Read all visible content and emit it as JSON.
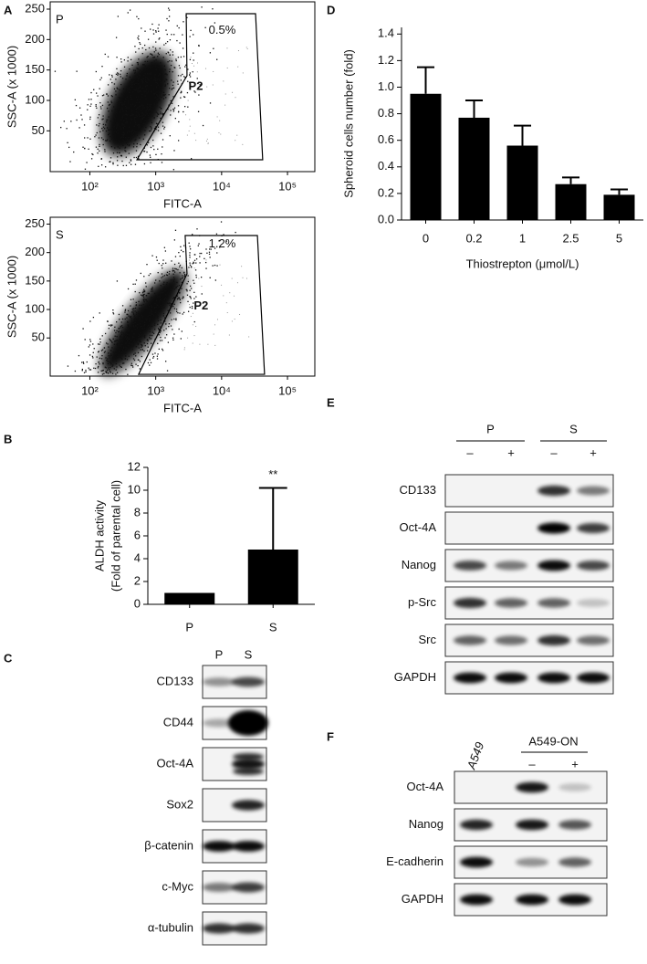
{
  "panel_labels": [
    "A",
    "B",
    "C",
    "D",
    "E",
    "F"
  ],
  "chart_data": [
    {
      "type": "flow",
      "panel_text": "P",
      "gate_percent": "0.5%",
      "gate_label": "P2",
      "x_label": "FITC-A",
      "y_label": "SSC-A (x 1000)",
      "xscale": "log",
      "xlim": [
        25,
        260000
      ],
      "xticks": [
        {
          "value": 100,
          "label": "10²"
        },
        {
          "value": 1000,
          "label": "10³"
        },
        {
          "value": 10000,
          "label": "10⁴"
        },
        {
          "value": 100000,
          "label": "10⁵"
        }
      ],
      "ylim": [
        -17,
        262
      ],
      "yticks": [
        50,
        100,
        150,
        200,
        250
      ]
    },
    {
      "type": "flow",
      "panel_text": "S",
      "gate_percent": "1.2%",
      "gate_label": "P2",
      "x_label": "FITC-A",
      "y_label": "SSC-A (x 1000)",
      "xscale": "log",
      "xlim": [
        25,
        260000
      ],
      "xticks": [
        {
          "value": 100,
          "label": "10²"
        },
        {
          "value": 1000,
          "label": "10³"
        },
        {
          "value": 10000,
          "label": "10⁴"
        },
        {
          "value": 100000,
          "label": "10⁵"
        }
      ],
      "ylim": [
        -17,
        262
      ],
      "yticks": [
        50,
        100,
        150,
        200,
        250
      ]
    },
    {
      "type": "bar",
      "y_label": [
        "ALDH activity",
        "(Fold of parental cell)"
      ],
      "categories": [
        "P",
        "S"
      ],
      "values": [
        1,
        4.8
      ],
      "errors": [
        null,
        5.4
      ],
      "annotations": [
        null,
        "**"
      ],
      "color": "#000000",
      "ylim": [
        0,
        12
      ],
      "yticks": [
        0,
        2,
        4,
        6,
        8,
        10,
        12
      ]
    },
    {
      "type": "bar",
      "x_label": "Thiostrepton (μmol/L)",
      "y_label": [
        "Spheroid cells number (fold)"
      ],
      "categories": [
        "0",
        "0.2",
        "1",
        "2.5",
        "5"
      ],
      "values": [
        0.95,
        0.77,
        0.56,
        0.27,
        0.19
      ],
      "errors": [
        0.2,
        0.13,
        0.15,
        0.05,
        0.04
      ],
      "color": "#000000",
      "ylim": [
        0,
        1.45
      ],
      "yticks": [
        {
          "value": 0,
          "label": "0.0"
        },
        0.2,
        0.4,
        0.6,
        0.8,
        {
          "value": 1,
          "label": "1.0"
        },
        1.2,
        1.4
      ]
    }
  ],
  "blots": [
    {
      "lanes": [
        "P",
        "S"
      ],
      "rows": [
        "CD133",
        "CD44",
        "Oct-4A",
        "Sox2",
        "β-catenin",
        "c-Myc",
        "α-tubulin"
      ]
    },
    {
      "groups": [
        "P",
        "S"
      ],
      "lanes": [
        "–",
        "+",
        "–",
        "+"
      ],
      "rows": [
        "CD133",
        "Oct-4A",
        "Nanog",
        "p-Src",
        "Src",
        "GAPDH"
      ]
    },
    {
      "lanes": [
        "A549"
      ],
      "group": "A549-ON",
      "group_lanes": [
        "–",
        "+"
      ],
      "rows": [
        "Oct-4A",
        "Nanog",
        "E-cadherin",
        "GAPDH"
      ]
    }
  ]
}
